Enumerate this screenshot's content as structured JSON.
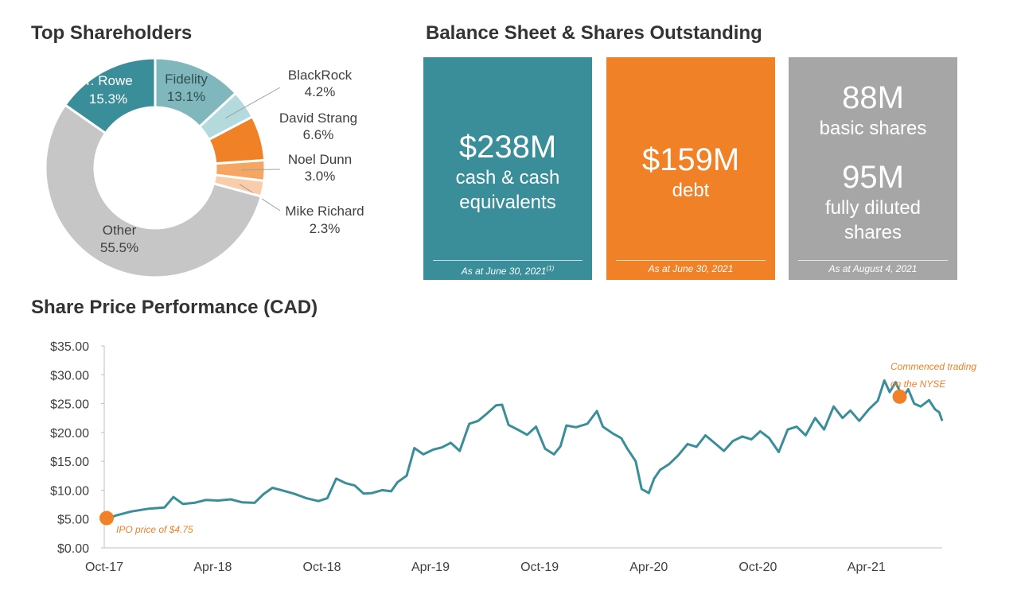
{
  "titles": {
    "shareholders": "Top Shareholders",
    "balance": "Balance Sheet & Shares Outstanding",
    "price": "Share Price Performance (CAD)"
  },
  "balance_sheet": {
    "cash": {
      "value": "$238M",
      "line1": "cash & cash",
      "line2": "equivalents",
      "note": "As at June 30, 2021",
      "note_sup": "(1)",
      "color": "#3a8e99"
    },
    "debt": {
      "value": "$159M",
      "line1": "debt",
      "note": "As at June 30, 2021",
      "color": "#f08127"
    },
    "shares": {
      "basic_value": "88M",
      "basic_label": "basic shares",
      "diluted_value": "95M",
      "diluted_line1": "fully diluted",
      "diluted_line2": "shares",
      "note": "As at August 4, 2021",
      "color": "#a6a6a6"
    }
  },
  "chart_data": [
    {
      "type": "pie",
      "title": "Top Shareholders",
      "slices": [
        {
          "label": "Fidelity",
          "value": 13.1,
          "display": "13.1%",
          "color": "#7fb7bd"
        },
        {
          "label": "BlackRock",
          "value": 4.2,
          "display": "4.2%",
          "color": "#b3dadd"
        },
        {
          "label": "David Strang",
          "value": 6.6,
          "display": "6.6%",
          "color": "#f08127"
        },
        {
          "label": "Noel Dunn",
          "value": 3.0,
          "display": "3.0%",
          "color": "#f4a662"
        },
        {
          "label": "Mike Richard",
          "value": 2.3,
          "display": "2.3%",
          "color": "#f9ccaa"
        },
        {
          "label": "Other",
          "value": 55.5,
          "display": "55.5%",
          "color": "#c6c6c6"
        },
        {
          "label": "T. Rowe",
          "value": 15.3,
          "display": "15.3%",
          "color": "#3a8e99"
        }
      ]
    },
    {
      "type": "line",
      "title": "Share Price Performance (CAD)",
      "x_ticks": [
        "Oct-17",
        "Apr-18",
        "Oct-18",
        "Apr-19",
        "Oct-19",
        "Apr-20",
        "Oct-20",
        "Apr-21"
      ],
      "y_ticks": [
        "$0.00",
        "$5.00",
        "$10.00",
        "$15.00",
        "$20.00",
        "$25.00",
        "$30.00",
        "$35.00"
      ],
      "ylim": [
        0,
        35
      ],
      "xlim": [
        "2017-10-01",
        "2021-08-06"
      ],
      "series": [
        {
          "color": "#3a8e99",
          "points": [
            [
              "2017-10-01",
              4.75
            ],
            [
              "2017-10-20",
              5.6
            ],
            [
              "2017-11-15",
              6.3
            ],
            [
              "2017-12-15",
              6.8
            ],
            [
              "2018-01-10",
              7.0
            ],
            [
              "2018-01-25",
              8.8
            ],
            [
              "2018-02-10",
              7.6
            ],
            [
              "2018-03-01",
              7.8
            ],
            [
              "2018-03-20",
              8.3
            ],
            [
              "2018-04-10",
              8.2
            ],
            [
              "2018-05-01",
              8.4
            ],
            [
              "2018-05-20",
              7.9
            ],
            [
              "2018-06-10",
              7.8
            ],
            [
              "2018-06-25",
              9.3
            ],
            [
              "2018-07-10",
              10.4
            ],
            [
              "2018-07-25",
              10.0
            ],
            [
              "2018-08-15",
              9.4
            ],
            [
              "2018-09-05",
              8.6
            ],
            [
              "2018-09-25",
              8.1
            ],
            [
              "2018-10-10",
              8.6
            ],
            [
              "2018-10-25",
              12.0
            ],
            [
              "2018-11-10",
              11.2
            ],
            [
              "2018-11-25",
              10.8
            ],
            [
              "2018-12-10",
              9.4
            ],
            [
              "2018-12-24",
              9.5
            ],
            [
              "2019-01-10",
              10.0
            ],
            [
              "2019-01-25",
              9.8
            ],
            [
              "2019-02-05",
              11.4
            ],
            [
              "2019-02-20",
              12.5
            ],
            [
              "2019-03-05",
              17.3
            ],
            [
              "2019-03-20",
              16.2
            ],
            [
              "2019-04-05",
              17.0
            ],
            [
              "2019-04-20",
              17.4
            ],
            [
              "2019-05-05",
              18.2
            ],
            [
              "2019-05-20",
              16.8
            ],
            [
              "2019-06-05",
              21.5
            ],
            [
              "2019-06-20",
              22.0
            ],
            [
              "2019-07-05",
              23.3
            ],
            [
              "2019-07-20",
              24.7
            ],
            [
              "2019-07-30",
              24.8
            ],
            [
              "2019-08-10",
              21.3
            ],
            [
              "2019-08-25",
              20.5
            ],
            [
              "2019-09-10",
              19.6
            ],
            [
              "2019-09-25",
              21.0
            ],
            [
              "2019-10-10",
              17.2
            ],
            [
              "2019-10-25",
              16.2
            ],
            [
              "2019-11-05",
              17.6
            ],
            [
              "2019-11-15",
              21.2
            ],
            [
              "2019-12-01",
              20.9
            ],
            [
              "2019-12-20",
              21.5
            ],
            [
              "2020-01-05",
              23.7
            ],
            [
              "2020-01-15",
              21.0
            ],
            [
              "2020-02-01",
              19.8
            ],
            [
              "2020-02-15",
              19.0
            ],
            [
              "2020-02-25",
              17.2
            ],
            [
              "2020-03-10",
              15.0
            ],
            [
              "2020-03-20",
              10.2
            ],
            [
              "2020-04-01",
              9.5
            ],
            [
              "2020-04-10",
              12.0
            ],
            [
              "2020-04-20",
              13.5
            ],
            [
              "2020-05-05",
              14.5
            ],
            [
              "2020-05-20",
              16.0
            ],
            [
              "2020-06-05",
              18.0
            ],
            [
              "2020-06-20",
              17.5
            ],
            [
              "2020-07-05",
              19.5
            ],
            [
              "2020-07-20",
              18.2
            ],
            [
              "2020-08-05",
              16.8
            ],
            [
              "2020-08-20",
              18.5
            ],
            [
              "2020-09-05",
              19.3
            ],
            [
              "2020-09-20",
              18.8
            ],
            [
              "2020-10-05",
              20.2
            ],
            [
              "2020-10-20",
              19.0
            ],
            [
              "2020-11-05",
              16.6
            ],
            [
              "2020-11-20",
              20.5
            ],
            [
              "2020-12-05",
              21.0
            ],
            [
              "2020-12-20",
              19.5
            ],
            [
              "2021-01-05",
              22.5
            ],
            [
              "2021-01-20",
              20.5
            ],
            [
              "2021-02-05",
              24.5
            ],
            [
              "2021-02-20",
              22.5
            ],
            [
              "2021-03-05",
              23.8
            ],
            [
              "2021-03-20",
              22.0
            ],
            [
              "2021-04-05",
              24.0
            ],
            [
              "2021-04-20",
              25.5
            ],
            [
              "2021-05-01",
              29.0
            ],
            [
              "2021-05-10",
              27.0
            ],
            [
              "2021-05-20",
              28.7
            ],
            [
              "2021-06-01",
              26.0
            ],
            [
              "2021-06-10",
              27.5
            ],
            [
              "2021-06-20",
              25.0
            ],
            [
              "2021-07-01",
              24.5
            ],
            [
              "2021-07-15",
              25.6
            ],
            [
              "2021-07-25",
              24.0
            ],
            [
              "2021-08-01",
              23.5
            ],
            [
              "2021-08-06",
              22.0
            ]
          ]
        }
      ],
      "annotations": [
        {
          "x": "2017-10-01",
          "y": 4.75,
          "text": "IPO price of $4.75",
          "color": "#f08127"
        },
        {
          "x": "2021-06-01",
          "y": 26.2,
          "text_line1": "Commenced trading",
          "text_line2": "on the NYSE",
          "color": "#f08127"
        }
      ]
    }
  ]
}
